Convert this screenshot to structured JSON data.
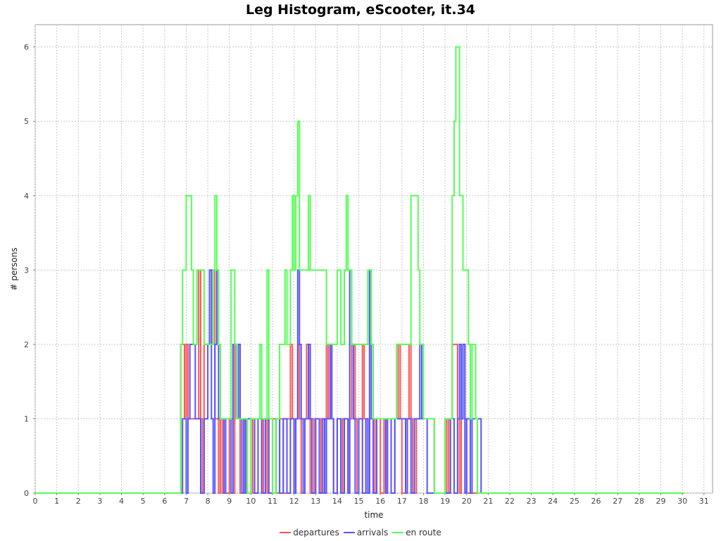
{
  "chart_data": {
    "type": "line",
    "title": "Leg Histogram, eScooter, it.34",
    "xlabel": "time",
    "ylabel": "# persons",
    "xlim": [
      0,
      31.4
    ],
    "ylim": [
      0,
      6.3
    ],
    "x_ticks": [
      0,
      1,
      2,
      3,
      4,
      5,
      6,
      7,
      8,
      9,
      10,
      11,
      12,
      13,
      14,
      15,
      16,
      17,
      18,
      19,
      20,
      21,
      22,
      23,
      24,
      25,
      26,
      27,
      28,
      29,
      30,
      31
    ],
    "y_ticks": [
      0,
      1,
      2,
      3,
      4,
      5,
      6
    ],
    "grid": true,
    "legend_position": "bottom",
    "step_width": 0.0833,
    "series": [
      {
        "name": "departures",
        "color": "#ff5555",
        "points": [
          [
            0,
            0
          ],
          [
            6.75,
            2
          ],
          [
            6.92,
            1
          ],
          [
            7.0,
            2
          ],
          [
            7.08,
            1
          ],
          [
            7.25,
            1
          ],
          [
            7.5,
            1
          ],
          [
            7.58,
            3
          ],
          [
            7.67,
            1
          ],
          [
            7.75,
            0
          ],
          [
            7.83,
            2
          ],
          [
            8.0,
            2
          ],
          [
            8.17,
            3
          ],
          [
            8.33,
            1
          ],
          [
            8.5,
            0
          ],
          [
            8.58,
            1
          ],
          [
            8.67,
            0
          ],
          [
            8.75,
            1
          ],
          [
            8.83,
            0
          ],
          [
            9.0,
            1
          ],
          [
            9.17,
            0
          ],
          [
            9.25,
            2
          ],
          [
            9.33,
            1
          ],
          [
            9.5,
            0
          ],
          [
            9.58,
            1
          ],
          [
            9.67,
            0
          ],
          [
            9.75,
            1
          ],
          [
            9.83,
            0
          ],
          [
            10.0,
            1
          ],
          [
            10.08,
            0
          ],
          [
            10.17,
            1
          ],
          [
            10.33,
            1
          ],
          [
            10.5,
            0
          ],
          [
            10.58,
            1
          ],
          [
            10.75,
            0
          ],
          [
            10.83,
            1
          ],
          [
            11.0,
            1
          ],
          [
            11.17,
            0
          ],
          [
            11.33,
            1
          ],
          [
            11.5,
            0
          ],
          [
            11.67,
            1
          ],
          [
            11.83,
            2
          ],
          [
            11.92,
            1
          ],
          [
            12.0,
            0
          ],
          [
            12.08,
            1
          ],
          [
            12.17,
            2
          ],
          [
            12.25,
            1
          ],
          [
            12.33,
            0
          ],
          [
            12.5,
            1
          ],
          [
            12.58,
            2
          ],
          [
            12.67,
            1
          ],
          [
            12.75,
            0
          ],
          [
            12.83,
            1
          ],
          [
            12.92,
            0
          ],
          [
            13.0,
            1
          ],
          [
            13.17,
            0
          ],
          [
            13.25,
            1
          ],
          [
            13.33,
            0
          ],
          [
            13.42,
            1
          ],
          [
            13.5,
            2
          ],
          [
            13.58,
            1
          ],
          [
            13.67,
            2
          ],
          [
            13.75,
            1
          ],
          [
            13.83,
            0
          ],
          [
            14.0,
            1
          ],
          [
            14.17,
            0
          ],
          [
            14.25,
            1
          ],
          [
            14.33,
            1
          ],
          [
            14.5,
            0
          ],
          [
            14.58,
            1
          ],
          [
            14.67,
            2
          ],
          [
            14.83,
            1
          ],
          [
            14.92,
            0
          ],
          [
            15.0,
            1
          ],
          [
            15.17,
            2
          ],
          [
            15.25,
            1
          ],
          [
            15.33,
            0
          ],
          [
            15.5,
            1
          ],
          [
            15.67,
            0
          ],
          [
            15.75,
            1
          ],
          [
            15.83,
            1
          ],
          [
            16.0,
            0
          ],
          [
            16.17,
            1
          ],
          [
            16.25,
            0
          ],
          [
            16.33,
            1
          ],
          [
            16.5,
            0
          ],
          [
            16.67,
            1
          ],
          [
            16.83,
            2
          ],
          [
            16.92,
            1
          ],
          [
            17.0,
            0
          ],
          [
            17.17,
            1
          ],
          [
            17.33,
            2
          ],
          [
            17.42,
            1
          ],
          [
            17.5,
            0
          ],
          [
            17.67,
            1
          ],
          [
            17.83,
            1
          ],
          [
            18.0,
            1
          ],
          [
            18.17,
            1
          ],
          [
            18.33,
            1
          ],
          [
            18.5,
            0
          ],
          [
            18.75,
            0
          ],
          [
            19.0,
            1
          ],
          [
            19.08,
            0
          ],
          [
            19.17,
            1
          ],
          [
            19.33,
            2
          ],
          [
            19.5,
            2
          ],
          [
            19.58,
            1
          ],
          [
            19.67,
            0
          ],
          [
            19.75,
            1
          ],
          [
            19.83,
            2
          ],
          [
            19.92,
            1
          ],
          [
            20.0,
            0
          ],
          [
            21.0,
            0
          ],
          [
            30.08,
            0
          ]
        ]
      },
      {
        "name": "arrivals",
        "color": "#5555ff",
        "points": [
          [
            0,
            0
          ],
          [
            6.83,
            1
          ],
          [
            7.0,
            0
          ],
          [
            7.08,
            1
          ],
          [
            7.17,
            2
          ],
          [
            7.33,
            2
          ],
          [
            7.42,
            1
          ],
          [
            7.58,
            1
          ],
          [
            7.67,
            0
          ],
          [
            7.83,
            1
          ],
          [
            8.0,
            2
          ],
          [
            8.08,
            3
          ],
          [
            8.17,
            1
          ],
          [
            8.25,
            0
          ],
          [
            8.33,
            2
          ],
          [
            8.42,
            3
          ],
          [
            8.5,
            1
          ],
          [
            8.67,
            1
          ],
          [
            8.75,
            0
          ],
          [
            8.83,
            1
          ],
          [
            9.0,
            1
          ],
          [
            9.08,
            0
          ],
          [
            9.17,
            2
          ],
          [
            9.33,
            1
          ],
          [
            9.42,
            2
          ],
          [
            9.5,
            1
          ],
          [
            9.58,
            0
          ],
          [
            9.67,
            1
          ],
          [
            9.75,
            0
          ],
          [
            9.83,
            1
          ],
          [
            10.0,
            1
          ],
          [
            10.17,
            0
          ],
          [
            10.33,
            1
          ],
          [
            10.5,
            0
          ],
          [
            10.67,
            1
          ],
          [
            10.83,
            0
          ],
          [
            11.0,
            0
          ],
          [
            11.17,
            1
          ],
          [
            11.33,
            0
          ],
          [
            11.5,
            1
          ],
          [
            11.67,
            0
          ],
          [
            11.83,
            1
          ],
          [
            12.0,
            0
          ],
          [
            12.08,
            1
          ],
          [
            12.17,
            3
          ],
          [
            12.25,
            2
          ],
          [
            12.33,
            1
          ],
          [
            12.42,
            0
          ],
          [
            12.5,
            1
          ],
          [
            12.67,
            2
          ],
          [
            12.75,
            1
          ],
          [
            12.83,
            0
          ],
          [
            13.0,
            1
          ],
          [
            13.17,
            0
          ],
          [
            13.33,
            1
          ],
          [
            13.42,
            0
          ],
          [
            13.5,
            1
          ],
          [
            13.67,
            2
          ],
          [
            13.75,
            1
          ],
          [
            13.83,
            0
          ],
          [
            14.0,
            1
          ],
          [
            14.17,
            0
          ],
          [
            14.33,
            1
          ],
          [
            14.5,
            0
          ],
          [
            14.58,
            3
          ],
          [
            14.67,
            2
          ],
          [
            14.75,
            1
          ],
          [
            14.83,
            0
          ],
          [
            15.0,
            1
          ],
          [
            15.17,
            0
          ],
          [
            15.33,
            1
          ],
          [
            15.42,
            0
          ],
          [
            15.5,
            3
          ],
          [
            15.58,
            1
          ],
          [
            15.67,
            0
          ],
          [
            15.83,
            1
          ],
          [
            16.0,
            1
          ],
          [
            16.17,
            1
          ],
          [
            16.25,
            0
          ],
          [
            16.33,
            1
          ],
          [
            16.5,
            0
          ],
          [
            16.67,
            1
          ],
          [
            16.83,
            1
          ],
          [
            17.0,
            1
          ],
          [
            17.17,
            0
          ],
          [
            17.25,
            1
          ],
          [
            17.42,
            0
          ],
          [
            17.58,
            1
          ],
          [
            17.75,
            1
          ],
          [
            17.83,
            2
          ],
          [
            17.92,
            1
          ],
          [
            18.0,
            1
          ],
          [
            18.17,
            0
          ],
          [
            18.33,
            0
          ],
          [
            19.0,
            0
          ],
          [
            19.25,
            1
          ],
          [
            19.42,
            0
          ],
          [
            19.58,
            1
          ],
          [
            19.67,
            2
          ],
          [
            19.75,
            1
          ],
          [
            19.83,
            2
          ],
          [
            19.92,
            0
          ],
          [
            20.0,
            1
          ],
          [
            20.17,
            0
          ],
          [
            20.25,
            1
          ],
          [
            20.33,
            1
          ],
          [
            20.5,
            1
          ],
          [
            20.67,
            0
          ],
          [
            21.0,
            0
          ],
          [
            30.08,
            0
          ]
        ]
      },
      {
        "name": "en route",
        "color": "#55ff55",
        "points": [
          [
            0,
            0
          ],
          [
            6.75,
            2
          ],
          [
            6.83,
            3
          ],
          [
            7.0,
            4
          ],
          [
            7.25,
            3
          ],
          [
            7.33,
            2
          ],
          [
            7.5,
            3
          ],
          [
            7.75,
            3
          ],
          [
            7.83,
            2
          ],
          [
            8.0,
            2
          ],
          [
            8.25,
            3
          ],
          [
            8.33,
            4
          ],
          [
            8.42,
            3
          ],
          [
            8.5,
            2
          ],
          [
            8.58,
            1
          ],
          [
            8.67,
            1
          ],
          [
            8.83,
            1
          ],
          [
            9.0,
            1
          ],
          [
            9.08,
            3
          ],
          [
            9.25,
            2
          ],
          [
            9.33,
            1
          ],
          [
            9.5,
            1
          ],
          [
            9.75,
            1
          ],
          [
            9.83,
            0
          ],
          [
            10.0,
            1
          ],
          [
            10.25,
            1
          ],
          [
            10.42,
            2
          ],
          [
            10.5,
            1
          ],
          [
            10.75,
            3
          ],
          [
            10.83,
            1
          ],
          [
            11.0,
            0
          ],
          [
            11.17,
            1
          ],
          [
            11.33,
            2
          ],
          [
            11.5,
            2
          ],
          [
            11.58,
            3
          ],
          [
            11.67,
            2
          ],
          [
            11.83,
            3
          ],
          [
            11.92,
            4
          ],
          [
            12.0,
            3
          ],
          [
            12.08,
            4
          ],
          [
            12.17,
            5
          ],
          [
            12.25,
            3
          ],
          [
            12.33,
            3
          ],
          [
            12.42,
            3
          ],
          [
            12.5,
            3
          ],
          [
            12.67,
            4
          ],
          [
            12.75,
            3
          ],
          [
            13.0,
            3
          ],
          [
            13.17,
            3
          ],
          [
            13.33,
            3
          ],
          [
            13.42,
            3
          ],
          [
            13.5,
            2
          ],
          [
            13.67,
            2
          ],
          [
            13.83,
            2
          ],
          [
            14.0,
            3
          ],
          [
            14.17,
            2
          ],
          [
            14.33,
            3
          ],
          [
            14.42,
            4
          ],
          [
            14.5,
            3
          ],
          [
            14.67,
            2
          ],
          [
            14.83,
            2
          ],
          [
            15.0,
            2
          ],
          [
            15.17,
            2
          ],
          [
            15.25,
            2
          ],
          [
            15.42,
            3
          ],
          [
            15.58,
            2
          ],
          [
            15.67,
            1
          ],
          [
            15.83,
            1
          ],
          [
            16.0,
            1
          ],
          [
            16.33,
            1
          ],
          [
            16.67,
            1
          ],
          [
            16.75,
            2
          ],
          [
            17.0,
            2
          ],
          [
            17.17,
            2
          ],
          [
            17.42,
            4
          ],
          [
            17.75,
            3
          ],
          [
            17.83,
            2
          ],
          [
            18.0,
            1
          ],
          [
            18.17,
            1
          ],
          [
            18.33,
            1
          ],
          [
            18.5,
            0
          ],
          [
            18.75,
            0
          ],
          [
            19.0,
            1
          ],
          [
            19.17,
            1
          ],
          [
            19.33,
            4
          ],
          [
            19.42,
            5
          ],
          [
            19.5,
            6
          ],
          [
            19.67,
            4
          ],
          [
            19.83,
            3
          ],
          [
            20.0,
            3
          ],
          [
            20.08,
            2
          ],
          [
            20.17,
            1
          ],
          [
            20.25,
            2
          ],
          [
            20.42,
            1
          ],
          [
            20.5,
            0
          ],
          [
            21.0,
            0
          ],
          [
            30.08,
            0
          ]
        ]
      }
    ]
  }
}
